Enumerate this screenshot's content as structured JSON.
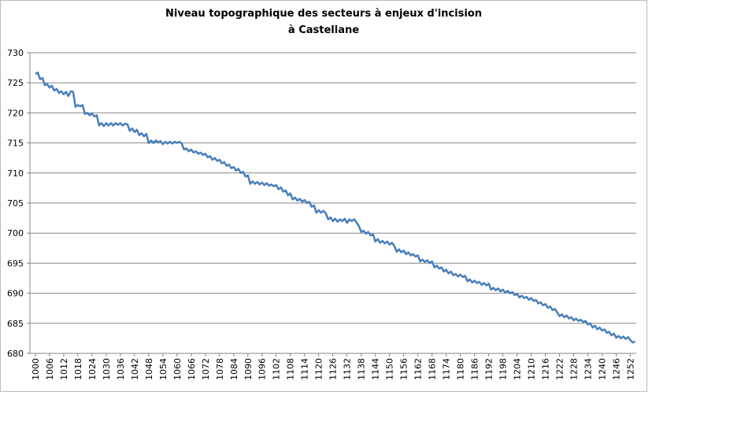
{
  "chart_data": {
    "type": "line",
    "title": [
      "Niveau topographique des secteurs à enjeux d'incision",
      "à Castellane"
    ],
    "x": [
      1000,
      1001,
      1002,
      1003,
      1004,
      1005,
      1006,
      1007,
      1008,
      1009,
      1010,
      1011,
      1012,
      1013,
      1014,
      1015,
      1016,
      1017,
      1018,
      1019,
      1020,
      1021,
      1022,
      1023,
      1024,
      1025,
      1026,
      1027,
      1028,
      1029,
      1030,
      1031,
      1032,
      1033,
      1034,
      1035,
      1036,
      1037,
      1038,
      1039,
      1040,
      1041,
      1042,
      1043,
      1044,
      1045,
      1046,
      1047,
      1048,
      1049,
      1050,
      1051,
      1052,
      1053,
      1054,
      1055,
      1056,
      1057,
      1058,
      1059,
      1060,
      1061,
      1062,
      1063,
      1064,
      1065,
      1066,
      1067,
      1068,
      1069,
      1070,
      1071,
      1072,
      1073,
      1074,
      1075,
      1076,
      1077,
      1078,
      1079,
      1080,
      1081,
      1082,
      1083,
      1084,
      1085,
      1086,
      1087,
      1088,
      1089,
      1090,
      1091,
      1092,
      1093,
      1094,
      1095,
      1096,
      1097,
      1098,
      1099,
      1100,
      1101,
      1102,
      1103,
      1104,
      1105,
      1106,
      1107,
      1108,
      1109,
      1110,
      1111,
      1112,
      1113,
      1114,
      1115,
      1116,
      1117,
      1118,
      1119,
      1120,
      1121,
      1122,
      1123,
      1124,
      1125,
      1126,
      1127,
      1128,
      1129,
      1130,
      1131,
      1132,
      1133,
      1134,
      1135,
      1136,
      1137,
      1138,
      1139,
      1140,
      1141,
      1142,
      1143,
      1144,
      1145,
      1146,
      1147,
      1148,
      1149,
      1150,
      1151,
      1152,
      1153,
      1154,
      1155,
      1156,
      1157,
      1158,
      1159,
      1160,
      1161,
      1162,
      1163,
      1164,
      1165,
      1166,
      1167,
      1168,
      1169,
      1170,
      1171,
      1172,
      1173,
      1174,
      1175,
      1176,
      1177,
      1178,
      1179,
      1180,
      1181,
      1182,
      1183,
      1184,
      1185,
      1186,
      1187,
      1188,
      1189,
      1190,
      1191,
      1192,
      1193,
      1194,
      1195,
      1196,
      1197,
      1198,
      1199,
      1200,
      1201,
      1202,
      1203,
      1204,
      1205,
      1206,
      1207,
      1208,
      1209,
      1210,
      1211,
      1212,
      1213,
      1214,
      1215,
      1216,
      1217,
      1218,
      1219,
      1220,
      1221,
      1222,
      1223,
      1224,
      1225,
      1226,
      1227,
      1228,
      1229,
      1230,
      1231,
      1232,
      1233,
      1234,
      1235,
      1236,
      1237,
      1238,
      1239,
      1240,
      1241,
      1242,
      1243,
      1244,
      1245,
      1246,
      1247,
      1248,
      1249,
      1250,
      1251,
      1252,
      1253,
      1254
    ],
    "series": [
      {
        "color": "#4a7ebb",
        "values": [
          726.5,
          726.7,
          725.6,
          725.8,
          724.6,
          724.8,
          724.2,
          724.5,
          723.7,
          724.0,
          723.3,
          723.6,
          723.1,
          723.5,
          722.8,
          723.6,
          723.5,
          721.0,
          721.3,
          721.1,
          721.3,
          719.8,
          720.0,
          719.6,
          719.9,
          719.4,
          719.6,
          717.9,
          718.3,
          717.8,
          718.3,
          717.9,
          718.3,
          717.9,
          718.3,
          718.0,
          718.3,
          717.9,
          718.2,
          718.1,
          717.0,
          717.4,
          716.8,
          717.2,
          716.3,
          716.6,
          716.1,
          716.5,
          715.0,
          715.4,
          715.0,
          715.4,
          715.1,
          715.3,
          714.8,
          715.2,
          714.9,
          715.2,
          714.9,
          715.2,
          715.0,
          715.2,
          714.9,
          713.9,
          714.1,
          713.6,
          713.9,
          713.4,
          713.6,
          713.2,
          713.4,
          713.0,
          713.2,
          712.6,
          712.8,
          712.2,
          712.5,
          712.0,
          712.2,
          711.6,
          711.8,
          711.2,
          711.4,
          710.8,
          711.0,
          710.4,
          710.7,
          710.0,
          710.2,
          709.4,
          709.6,
          708.2,
          708.6,
          708.2,
          708.5,
          708.1,
          708.4,
          708.0,
          708.3,
          707.9,
          708.1,
          707.8,
          708.0,
          707.3,
          707.6,
          706.9,
          707.1,
          706.3,
          706.6,
          705.6,
          705.9,
          705.4,
          705.7,
          705.2,
          705.5,
          705.0,
          705.2,
          704.4,
          704.6,
          703.4,
          703.8,
          703.4,
          703.7,
          703.3,
          702.3,
          702.6,
          702.0,
          702.4,
          701.9,
          702.3,
          702.0,
          702.4,
          701.7,
          702.3,
          702.0,
          702.3,
          701.8,
          701.2,
          700.2,
          700.4,
          699.9,
          700.2,
          699.6,
          699.8,
          698.6,
          699.0,
          698.4,
          698.7,
          698.3,
          698.6,
          698.1,
          698.4,
          697.9,
          696.9,
          697.3,
          696.8,
          697.1,
          696.5,
          696.8,
          696.3,
          696.5,
          696.1,
          696.3,
          695.3,
          695.6,
          695.2,
          695.5,
          695.0,
          695.3,
          694.3,
          694.6,
          694.1,
          694.3,
          693.6,
          693.9,
          693.3,
          693.6,
          693.0,
          693.2,
          692.8,
          693.1,
          692.7,
          692.9,
          692.0,
          692.3,
          691.8,
          692.1,
          691.7,
          691.9,
          691.4,
          691.7,
          691.3,
          691.6,
          690.6,
          690.9,
          690.5,
          690.8,
          690.3,
          690.6,
          690.1,
          690.4,
          690.0,
          690.2,
          689.7,
          689.9,
          689.3,
          689.6,
          689.2,
          689.4,
          688.9,
          689.2,
          688.7,
          688.9,
          688.3,
          688.5,
          688.0,
          688.2,
          687.6,
          687.8,
          687.2,
          687.4,
          686.8,
          686.2,
          686.5,
          686.0,
          686.3,
          685.8,
          686.0,
          685.5,
          685.8,
          685.4,
          685.6,
          685.2,
          685.4,
          684.8,
          685.0,
          684.3,
          684.6,
          684.0,
          684.3,
          683.8,
          684.0,
          683.4,
          683.6,
          683.0,
          683.3,
          682.6,
          682.9,
          682.5,
          682.8,
          682.4,
          682.7,
          682.2,
          681.8,
          682.0
        ]
      }
    ],
    "xlim": [
      997.7,
      1254.5
    ],
    "xticks": [
      1000,
      1006,
      1012,
      1018,
      1024,
      1030,
      1036,
      1042,
      1048,
      1054,
      1060,
      1066,
      1072,
      1078,
      1084,
      1090,
      1096,
      1102,
      1108,
      1114,
      1120,
      1126,
      1132,
      1138,
      1144,
      1150,
      1156,
      1162,
      1168,
      1174,
      1180,
      1186,
      1192,
      1198,
      1204,
      1210,
      1216,
      1222,
      1228,
      1234,
      1240,
      1246,
      1252
    ],
    "ylim": [
      680,
      730
    ],
    "yticks": [
      680,
      685,
      690,
      695,
      700,
      705,
      710,
      715,
      720,
      725,
      730
    ],
    "grid": true
  }
}
